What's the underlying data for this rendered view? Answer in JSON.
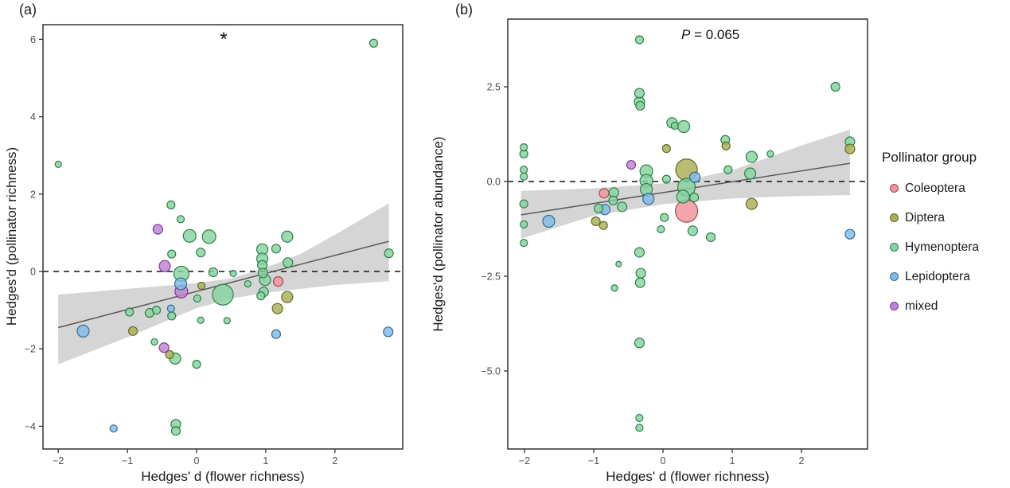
{
  "figure_title": "",
  "legend": {
    "title": "Pollinator group",
    "entries": [
      {
        "label": "Coleoptera",
        "fill": "#F09298",
        "stroke": "#9E4A52"
      },
      {
        "label": "Diptera",
        "fill": "#A9AE53",
        "stroke": "#656B26"
      },
      {
        "label": "Hymenoptera",
        "fill": "#85D39E",
        "stroke": "#2F7E4E"
      },
      {
        "label": "Lepidoptera",
        "fill": "#7FBCE9",
        "stroke": "#39688C"
      },
      {
        "label": "mixed",
        "fill": "#BD82D1",
        "stroke": "#7C3D96"
      }
    ]
  },
  "style": {
    "band_color": "#c9c9c9",
    "band_opacity": 0.78,
    "line_color": "#5a5a5a",
    "dash_color": "#111111",
    "border_color": "#3f3f3f",
    "tick_color": "#333333",
    "tick_label_color": "#4d4d4d",
    "axis_title_color": "#1a1a1a",
    "point_opacity": 0.82
  },
  "chart_data": [
    {
      "id": "a",
      "type": "scatter",
      "panel_label": "(a)",
      "annotation": {
        "text": "*"
      },
      "xlabel": "Hedges' d (flower richness)",
      "ylabel": "Hedges'd (pollinator richness)",
      "xlim": [
        -2.24,
        2.98
      ],
      "ylim": [
        -4.6,
        6.4
      ],
      "xticks": [
        -2,
        -1,
        0,
        1,
        2
      ],
      "yticks": [
        -4,
        -2,
        0,
        2,
        4,
        6
      ],
      "xtick_labels": [
        "−2",
        "−1",
        "0",
        "1",
        "2"
      ],
      "ytick_labels": [
        "−4",
        "−2",
        "0",
        "2",
        "4",
        "6"
      ],
      "hline_y": 0,
      "regression": {
        "x": [
          -2.0,
          2.78
        ],
        "y": [
          -1.45,
          0.78
        ]
      },
      "ci_band": {
        "x": [
          -2.0,
          -1.0,
          0.0,
          0.5,
          1.0,
          1.5,
          2.0,
          2.78
        ],
        "upper": [
          -0.6,
          -0.45,
          -0.3,
          -0.18,
          0.1,
          0.45,
          0.95,
          1.76
        ],
        "lower": [
          -2.4,
          -1.7,
          -0.95,
          -0.7,
          -0.55,
          -0.45,
          -0.35,
          -0.25
        ]
      },
      "points": [
        [
          -2.0,
          2.77,
          4,
          "Hymenoptera"
        ],
        [
          2.56,
          5.9,
          5,
          "Hymenoptera"
        ],
        [
          -0.37,
          1.72,
          5,
          "Hymenoptera"
        ],
        [
          -0.23,
          1.35,
          4.5,
          "Hymenoptera"
        ],
        [
          -0.56,
          1.09,
          6,
          "mixed"
        ],
        [
          -0.1,
          0.92,
          8,
          "Hymenoptera"
        ],
        [
          0.18,
          0.9,
          8.5,
          "Hymenoptera"
        ],
        [
          -0.36,
          0.45,
          5,
          "Hymenoptera"
        ],
        [
          0.06,
          0.49,
          5.5,
          "Hymenoptera"
        ],
        [
          -0.46,
          0.14,
          7,
          "mixed"
        ],
        [
          -0.22,
          -0.06,
          9.5,
          "Hymenoptera"
        ],
        [
          -0.23,
          -0.32,
          7.5,
          "Lepidoptera"
        ],
        [
          -0.22,
          -0.52,
          8,
          "mixed"
        ],
        [
          0.07,
          -0.37,
          4.5,
          "Diptera"
        ],
        [
          0.24,
          -0.02,
          5.5,
          "Hymenoptera"
        ],
        [
          0.53,
          -0.05,
          4,
          "Hymenoptera"
        ],
        [
          0.38,
          -0.6,
          13,
          "Hymenoptera"
        ],
        [
          0.01,
          -0.7,
          4.5,
          "Hymenoptera"
        ],
        [
          0.06,
          -1.26,
          4,
          "Hymenoptera"
        ],
        [
          -0.97,
          -1.05,
          5,
          "Hymenoptera"
        ],
        [
          -0.68,
          -1.07,
          5.5,
          "Hymenoptera"
        ],
        [
          -0.58,
          -1.0,
          5,
          "Hymenoptera"
        ],
        [
          -0.37,
          -0.96,
          4.5,
          "Lepidoptera"
        ],
        [
          -0.36,
          -1.15,
          5,
          "Hymenoptera"
        ],
        [
          -1.64,
          -1.54,
          7.5,
          "Lepidoptera"
        ],
        [
          -0.92,
          -1.54,
          5.5,
          "Diptera"
        ],
        [
          -0.61,
          -1.82,
          4,
          "Hymenoptera"
        ],
        [
          -0.47,
          -1.97,
          6,
          "mixed"
        ],
        [
          -0.39,
          -2.15,
          5,
          "Diptera"
        ],
        [
          -0.31,
          -2.25,
          7,
          "Hymenoptera"
        ],
        [
          0.0,
          -2.4,
          5,
          "Hymenoptera"
        ],
        [
          -1.2,
          -4.06,
          4.5,
          "Lepidoptera"
        ],
        [
          -0.3,
          -3.95,
          6,
          "Hymenoptera"
        ],
        [
          -0.3,
          -4.12,
          5.5,
          "Hymenoptera"
        ],
        [
          0.95,
          0.57,
          7,
          "Hymenoptera"
        ],
        [
          1.15,
          0.59,
          5.5,
          "Hymenoptera"
        ],
        [
          1.31,
          0.9,
          7,
          "Hymenoptera"
        ],
        [
          0.95,
          0.33,
          7,
          "Hymenoptera"
        ],
        [
          0.95,
          0.16,
          6,
          "Hymenoptera"
        ],
        [
          1.32,
          0.23,
          6,
          "Hymenoptera"
        ],
        [
          0.96,
          -0.04,
          6,
          "Hymenoptera"
        ],
        [
          0.99,
          -0.22,
          7,
          "Hymenoptera"
        ],
        [
          1.18,
          -0.26,
          6,
          "Coleoptera"
        ],
        [
          0.74,
          -0.32,
          4,
          "Hymenoptera"
        ],
        [
          0.97,
          -0.53,
          6,
          "Hymenoptera"
        ],
        [
          0.93,
          -0.63,
          5,
          "Hymenoptera"
        ],
        [
          1.31,
          -0.66,
          7,
          "Diptera"
        ],
        [
          1.17,
          -0.96,
          6.5,
          "Diptera"
        ],
        [
          0.44,
          -1.27,
          4,
          "Hymenoptera"
        ],
        [
          1.15,
          -1.62,
          5.5,
          "Lepidoptera"
        ],
        [
          2.78,
          0.47,
          5.5,
          "Hymenoptera"
        ],
        [
          2.77,
          -1.56,
          6,
          "Lepidoptera"
        ]
      ]
    },
    {
      "id": "b",
      "type": "scatter",
      "panel_label": "(b)",
      "annotation": {
        "prefix": "P",
        "rest": " = 0.065"
      },
      "xlabel": "Hedges' d (flower richness)",
      "ylabel": "Hedges'd (pollinator abundance)",
      "xlim": [
        -2.24,
        2.95
      ],
      "ylim": [
        -7.06,
        4.29
      ],
      "xticks": [
        -2,
        -1,
        0,
        1,
        2
      ],
      "yticks": [
        -5.0,
        -2.5,
        0.0,
        2.5
      ],
      "xtick_labels": [
        "−2",
        "−1",
        "0",
        "1",
        "2"
      ],
      "ytick_labels": [
        "−5.0",
        "−2.5",
        "0.0",
        "2.5"
      ],
      "hline_y": 0,
      "regression": {
        "x": [
          -2.05,
          2.7
        ],
        "y": [
          -0.88,
          0.48
        ]
      },
      "ci_band": {
        "x": [
          -2.05,
          -1.0,
          0.0,
          0.5,
          1.0,
          1.5,
          2.0,
          2.7
        ],
        "upper": [
          -0.25,
          -0.18,
          -0.05,
          0.1,
          0.3,
          0.62,
          0.95,
          1.37
        ],
        "lower": [
          -1.51,
          -0.9,
          -0.6,
          -0.52,
          -0.45,
          -0.41,
          -0.38,
          -0.36
        ]
      },
      "points": [
        [
          -0.34,
          3.74,
          5,
          "Hymenoptera"
        ],
        [
          2.49,
          2.5,
          5.5,
          "Hymenoptera"
        ],
        [
          -0.34,
          2.33,
          6,
          "Hymenoptera"
        ],
        [
          -0.34,
          2.1,
          6.5,
          "Hymenoptera"
        ],
        [
          -0.33,
          2.0,
          5.5,
          "Hymenoptera"
        ],
        [
          0.13,
          1.55,
          6.5,
          "Hymenoptera"
        ],
        [
          0.3,
          1.45,
          7.5,
          "Hymenoptera"
        ],
        [
          0.17,
          1.47,
          4.5,
          "Hymenoptera"
        ],
        [
          0.9,
          1.1,
          5.5,
          "Hymenoptera"
        ],
        [
          0.91,
          0.94,
          5,
          "Diptera"
        ],
        [
          2.7,
          1.05,
          6,
          "Hymenoptera"
        ],
        [
          2.7,
          0.86,
          6,
          "Diptera"
        ],
        [
          -2.01,
          0.9,
          4.5,
          "Hymenoptera"
        ],
        [
          -2.01,
          0.73,
          5,
          "Hymenoptera"
        ],
        [
          -2.01,
          0.31,
          4.5,
          "Hymenoptera"
        ],
        [
          -2.01,
          0.13,
          4.5,
          "Hymenoptera"
        ],
        [
          0.05,
          0.87,
          5,
          "Diptera"
        ],
        [
          -0.46,
          0.44,
          5.5,
          "mixed"
        ],
        [
          1.28,
          0.65,
          7,
          "Hymenoptera"
        ],
        [
          1.55,
          0.73,
          4,
          "Hymenoptera"
        ],
        [
          1.26,
          0.21,
          7,
          "Hymenoptera"
        ],
        [
          0.94,
          0.31,
          5,
          "Hymenoptera"
        ],
        [
          1.28,
          -0.59,
          7,
          "Diptera"
        ],
        [
          -0.24,
          0.27,
          8,
          "Hymenoptera"
        ],
        [
          -0.24,
          0.02,
          8,
          "Hymenoptera"
        ],
        [
          -0.24,
          -0.21,
          7.5,
          "Hymenoptera"
        ],
        [
          0.34,
          0.31,
          13.5,
          "Diptera"
        ],
        [
          0.46,
          0.11,
          6.5,
          "Lepidoptera"
        ],
        [
          0.05,
          0.06,
          5,
          "Hymenoptera"
        ],
        [
          0.34,
          -0.15,
          11,
          "Hymenoptera"
        ],
        [
          0.29,
          -0.4,
          8,
          "Hymenoptera"
        ],
        [
          0.45,
          -0.42,
          5.5,
          "Hymenoptera"
        ],
        [
          0.34,
          -0.78,
          14,
          "Coleoptera"
        ],
        [
          -0.21,
          -0.46,
          7,
          "Lepidoptera"
        ],
        [
          -0.85,
          -0.31,
          6,
          "Coleoptera"
        ],
        [
          -0.71,
          -0.29,
          6,
          "Hymenoptera"
        ],
        [
          -0.72,
          -0.5,
          5.5,
          "Hymenoptera"
        ],
        [
          -0.59,
          -0.67,
          6,
          "Hymenoptera"
        ],
        [
          -0.84,
          -0.74,
          6.5,
          "Lepidoptera"
        ],
        [
          -0.93,
          -0.71,
          5.5,
          "Hymenoptera"
        ],
        [
          -0.97,
          -1.05,
          5.5,
          "Diptera"
        ],
        [
          -0.86,
          -1.16,
          5,
          "Diptera"
        ],
        [
          -1.65,
          -1.05,
          7.5,
          "Lepidoptera"
        ],
        [
          -2.01,
          -0.59,
          5,
          "Hymenoptera"
        ],
        [
          -2.01,
          -1.13,
          4.5,
          "Hymenoptera"
        ],
        [
          -2.01,
          -1.62,
          4.5,
          "Hymenoptera"
        ],
        [
          0.02,
          -0.95,
          5,
          "Hymenoptera"
        ],
        [
          -0.03,
          -1.26,
          4.5,
          "Hymenoptera"
        ],
        [
          0.43,
          -1.3,
          6,
          "Hymenoptera"
        ],
        [
          0.69,
          -1.47,
          5.5,
          "Hymenoptera"
        ],
        [
          -0.34,
          -1.87,
          6,
          "Hymenoptera"
        ],
        [
          -0.64,
          -2.18,
          3.5,
          "Hymenoptera"
        ],
        [
          -0.32,
          -2.42,
          6,
          "Hymenoptera"
        ],
        [
          -0.33,
          -2.67,
          6,
          "Hymenoptera"
        ],
        [
          -0.7,
          -2.81,
          4,
          "Hymenoptera"
        ],
        [
          -0.34,
          -4.26,
          6,
          "Hymenoptera"
        ],
        [
          -0.34,
          -6.24,
          4.5,
          "Hymenoptera"
        ],
        [
          -0.34,
          -6.5,
          4.5,
          "Hymenoptera"
        ],
        [
          2.7,
          -1.39,
          6,
          "Lepidoptera"
        ]
      ]
    }
  ]
}
